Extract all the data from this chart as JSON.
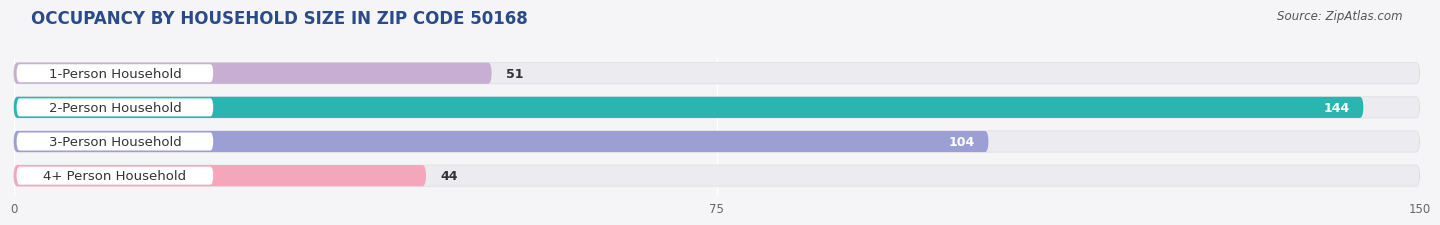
{
  "title": "OCCUPANCY BY HOUSEHOLD SIZE IN ZIP CODE 50168",
  "source": "Source: ZipAtlas.com",
  "categories": [
    "1-Person Household",
    "2-Person Household",
    "3-Person Household",
    "4+ Person Household"
  ],
  "values": [
    51,
    144,
    104,
    44
  ],
  "bar_colors": [
    "#c9aed4",
    "#2ab5b0",
    "#9b9fd4",
    "#f4a7bb"
  ],
  "bg_color_bar": "#ebebf0",
  "label_pill_color": "#ffffff",
  "xlim": [
    0,
    150
  ],
  "xticks": [
    0,
    75,
    150
  ],
  "title_fontsize": 12,
  "label_fontsize": 9.5,
  "value_fontsize": 9,
  "source_fontsize": 8.5,
  "bar_height": 0.62,
  "background_color": "#f5f5f8",
  "title_color": "#2a4a8a",
  "source_color": "#555555"
}
